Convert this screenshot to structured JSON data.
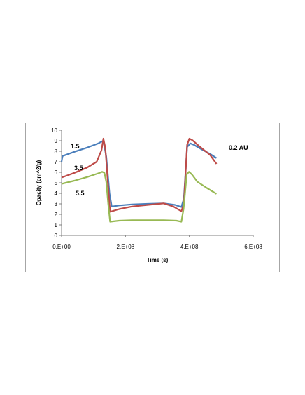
{
  "chart_data": {
    "type": "line",
    "title": "",
    "xlabel": "Time (s)",
    "ylabel": "Opacity (cm^2/g)",
    "xlim": [
      0,
      600000000
    ],
    "ylim": [
      0,
      10
    ],
    "x_ticks": [
      {
        "value": 0,
        "label": "0.E+00"
      },
      {
        "value": 200000000,
        "label": "2.E+08"
      },
      {
        "value": 400000000,
        "label": "4.E+08"
      },
      {
        "value": 600000000,
        "label": "6.E+08"
      }
    ],
    "y_ticks": [
      0,
      1,
      2,
      3,
      4,
      5,
      6,
      7,
      8,
      9,
      10
    ],
    "grid": false,
    "legend": "none",
    "annotations": [
      "1.5",
      "3.5",
      "5.5",
      "0.2 AU"
    ],
    "series": [
      {
        "label": "1.5",
        "color": "#4a7ebb",
        "points": [
          [
            0,
            7.0
          ],
          [
            3000000,
            7.55
          ],
          [
            40000000,
            7.95
          ],
          [
            80000000,
            8.35
          ],
          [
            115000000,
            8.75
          ],
          [
            127000000,
            8.95
          ],
          [
            133000000,
            8.7
          ],
          [
            140000000,
            7.5
          ],
          [
            150000000,
            4.0
          ],
          [
            157000000,
            2.75
          ],
          [
            180000000,
            2.85
          ],
          [
            220000000,
            2.95
          ],
          [
            270000000,
            3.0
          ],
          [
            320000000,
            3.05
          ],
          [
            355000000,
            2.9
          ],
          [
            375000000,
            2.7
          ],
          [
            383000000,
            3.5
          ],
          [
            393000000,
            8.4
          ],
          [
            403000000,
            8.75
          ],
          [
            415000000,
            8.6
          ],
          [
            440000000,
            8.15
          ],
          [
            465000000,
            7.75
          ],
          [
            485000000,
            7.35
          ]
        ]
      },
      {
        "label": "3.5",
        "color": "#be4b48",
        "points": [
          [
            0,
            5.5
          ],
          [
            40000000,
            5.95
          ],
          [
            80000000,
            6.45
          ],
          [
            110000000,
            7.0
          ],
          [
            125000000,
            8.1
          ],
          [
            131000000,
            9.2
          ],
          [
            137000000,
            8.3
          ],
          [
            145000000,
            5.0
          ],
          [
            152000000,
            2.25
          ],
          [
            180000000,
            2.5
          ],
          [
            220000000,
            2.75
          ],
          [
            270000000,
            2.9
          ],
          [
            320000000,
            3.05
          ],
          [
            350000000,
            2.75
          ],
          [
            375000000,
            2.3
          ],
          [
            383000000,
            3.0
          ],
          [
            393000000,
            8.6
          ],
          [
            400000000,
            9.2
          ],
          [
            410000000,
            9.05
          ],
          [
            430000000,
            8.5
          ],
          [
            465000000,
            7.65
          ],
          [
            485000000,
            6.8
          ]
        ]
      },
      {
        "label": "5.5",
        "color": "#98b954",
        "points": [
          [
            0,
            4.9
          ],
          [
            40000000,
            5.2
          ],
          [
            80000000,
            5.55
          ],
          [
            115000000,
            5.9
          ],
          [
            127000000,
            6.05
          ],
          [
            134000000,
            5.95
          ],
          [
            140000000,
            5.1
          ],
          [
            146000000,
            3.0
          ],
          [
            152000000,
            1.3
          ],
          [
            180000000,
            1.4
          ],
          [
            220000000,
            1.45
          ],
          [
            270000000,
            1.45
          ],
          [
            320000000,
            1.45
          ],
          [
            360000000,
            1.4
          ],
          [
            375000000,
            1.3
          ],
          [
            382000000,
            2.5
          ],
          [
            392000000,
            5.8
          ],
          [
            399000000,
            6.05
          ],
          [
            408000000,
            5.8
          ],
          [
            425000000,
            5.1
          ],
          [
            455000000,
            4.5
          ],
          [
            485000000,
            3.95
          ]
        ]
      }
    ]
  }
}
